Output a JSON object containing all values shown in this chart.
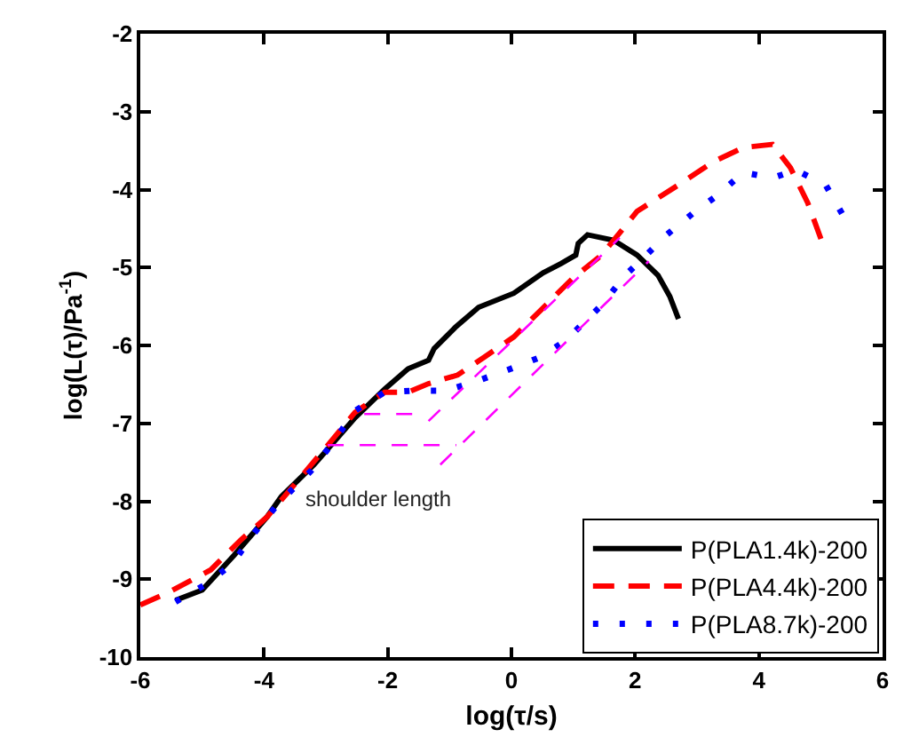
{
  "chart_data": {
    "type": "line",
    "xlabel": "log(τ/s)",
    "ylabel": "log(L(τ)/Pa$^{-1}$)",
    "xlim": [
      -6,
      6
    ],
    "xticks": [
      -6,
      -4,
      -2,
      0,
      2,
      4,
      6
    ],
    "ylim": [
      -10,
      -2
    ],
    "yticks": [
      -10,
      -9,
      -8,
      -7,
      -6,
      -5,
      -4,
      -3,
      -2
    ],
    "legend": "bottom right",
    "marker": "none",
    "annotations": [
      "shoulder length"
    ],
    "series": [
      {
        "name": "P(PLA1.4k)-200",
        "color": "#000000",
        "line_style": "solid",
        "x": [
          -5.43,
          -5.0,
          -4.48,
          -3.95,
          -3.72,
          -3.19,
          -2.53,
          -2.05,
          -1.67,
          -1.34,
          -1.25,
          -0.91,
          -0.53,
          0.04,
          0.51,
          0.8,
          1.04,
          1.08,
          1.23,
          1.65,
          2.03,
          2.37,
          2.56,
          2.7
        ],
        "values": [
          -9.27,
          -9.14,
          -8.69,
          -8.2,
          -7.94,
          -7.53,
          -6.93,
          -6.56,
          -6.3,
          -6.19,
          -6.04,
          -5.77,
          -5.51,
          -5.33,
          -5.07,
          -4.95,
          -4.84,
          -4.69,
          -4.58,
          -4.65,
          -4.84,
          -5.1,
          -5.37,
          -5.66
        ]
      },
      {
        "name": "P(PLA4.4k)-200",
        "color": "#ff0000",
        "line_style": "dashed",
        "x": [
          -6.0,
          -5.57,
          -4.86,
          -4.38,
          -3.95,
          -3.48,
          -3.0,
          -2.53,
          -2.05,
          -1.67,
          -1.34,
          -0.87,
          -0.44,
          0.04,
          0.47,
          0.99,
          1.46,
          2.03,
          2.7,
          3.27,
          3.75,
          4.22,
          4.51,
          4.79,
          5.03
        ],
        "values": [
          -9.33,
          -9.18,
          -8.88,
          -8.5,
          -8.2,
          -7.76,
          -7.31,
          -6.86,
          -6.6,
          -6.6,
          -6.49,
          -6.38,
          -6.15,
          -5.89,
          -5.55,
          -5.14,
          -4.84,
          -4.28,
          -3.94,
          -3.64,
          -3.46,
          -3.42,
          -3.72,
          -4.17,
          -4.69
        ]
      },
      {
        "name": "P(PLA8.7k)-200",
        "color": "#0000ff",
        "line_style": "dotted",
        "x": [
          -5.43,
          -4.95,
          -4.52,
          -4.14,
          -3.76,
          -3.24,
          -2.86,
          -2.53,
          -2.05,
          -1.58,
          -1.06,
          -0.53,
          -0.01,
          0.47,
          0.89,
          1.18,
          1.46,
          1.84,
          2.18,
          2.51,
          2.94,
          3.32,
          3.75,
          4.22,
          4.6,
          5.08,
          5.36
        ],
        "values": [
          -9.29,
          -9.07,
          -8.81,
          -8.39,
          -8.02,
          -7.61,
          -7.22,
          -6.84,
          -6.6,
          -6.58,
          -6.58,
          -6.45,
          -6.3,
          -6.15,
          -5.93,
          -5.7,
          -5.48,
          -5.1,
          -4.84,
          -4.58,
          -4.3,
          -4.08,
          -3.78,
          -3.85,
          -3.75,
          -3.94,
          -4.33
        ]
      },
      {
        "color": "#ff00ff",
        "line_style": "dashed",
        "x": [
          -1.34,
          1.75
        ],
        "values": [
          -6.97,
          -4.62
        ]
      },
      {
        "color": "#ff00ff",
        "line_style": "dashed",
        "x": [
          -1.15,
          2.22
        ],
        "values": [
          -7.53,
          -4.92
        ]
      },
      {
        "color": "#ff00ff",
        "line_style": "dashed",
        "x": [
          -2.38,
          -1.37
        ],
        "values": [
          -6.88,
          -6.88
        ]
      },
      {
        "color": "#ff00ff",
        "line_style": "dashed",
        "x": [
          -2.97,
          -0.89
        ],
        "values": [
          -7.28,
          -7.28
        ]
      }
    ]
  }
}
